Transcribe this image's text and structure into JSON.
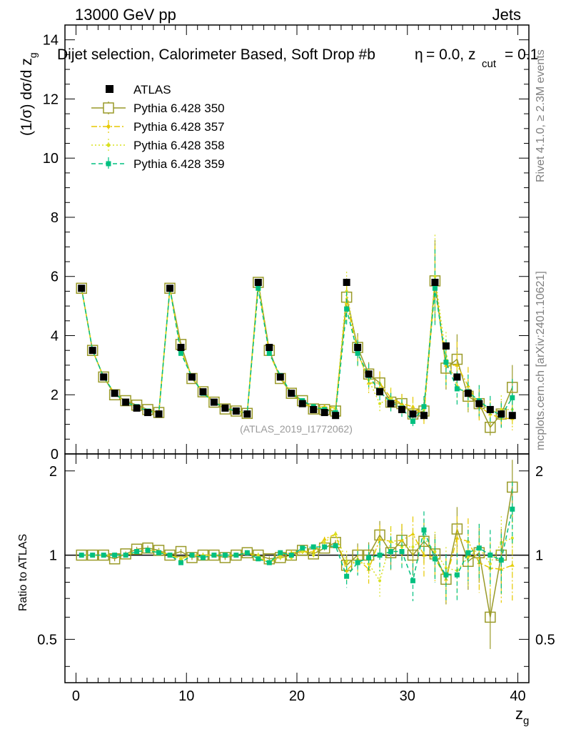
{
  "header": {
    "left": "13000 GeV pp",
    "right": "Jets"
  },
  "side_labels": {
    "rivet": "Rivet 4.1.0, ≥ 2.3M events",
    "mcplots": "mcplots.cern.ch [arXiv:2401.10621]"
  },
  "chart_data": [
    {
      "type": "scatter",
      "title_main": "Dijet selection, Calorimeter Based, Soft Drop #b",
      "title_mid": "= 0.0, z",
      "title_sub": "cut",
      "title_end": "= 0.1",
      "title_eta": "η",
      "ylabel": "(1/σ) dσ/d z",
      "ylabel_sub": "g",
      "watermark": "(ATLAS_2019_I1772062)",
      "xlim": [
        -1,
        41
      ],
      "ylim": [
        0,
        14.5
      ],
      "yticks": [
        "0",
        "2",
        "4",
        "6",
        "8",
        "10",
        "12",
        "14"
      ],
      "legend": [
        {
          "label": "ATLAS",
          "color": "#000000",
          "marker": "filled-square",
          "dash": ""
        },
        {
          "label": "Pythia 6.428 350",
          "color": "#9a9a28",
          "marker": "open-square",
          "dash": ""
        },
        {
          "label": "Pythia 6.428 357",
          "color": "#e6c800",
          "marker": "small-triangle",
          "dash": "8,3,2,3"
        },
        {
          "label": "Pythia 6.428 358",
          "color": "#d8e020",
          "marker": "dot",
          "dash": "2,3"
        },
        {
          "label": "Pythia 6.428 359",
          "color": "#00c080",
          "marker": "filled-square-small",
          "dash": "6,4"
        }
      ],
      "x": [
        0.5,
        1.5,
        2.5,
        3.5,
        4.5,
        5.5,
        6.5,
        7.5,
        8.5,
        9.5,
        10.5,
        11.5,
        12.5,
        13.5,
        14.5,
        15.5,
        16.5,
        17.5,
        18.5,
        19.5,
        20.5,
        21.5,
        22.5,
        23.5,
        24.5,
        25.5,
        26.5,
        27.5,
        28.5,
        29.5,
        30.5,
        31.5,
        32.5,
        33.5,
        34.5,
        35.5,
        36.5,
        37.5,
        38.5,
        39.5
      ],
      "series": [
        {
          "name": "ATLAS",
          "values": [
            5.6,
            3.5,
            2.6,
            2.05,
            1.75,
            1.55,
            1.4,
            1.35,
            5.6,
            3.6,
            2.6,
            2.1,
            1.75,
            1.55,
            1.45,
            1.35,
            5.8,
            3.6,
            2.6,
            2.05,
            1.7,
            1.5,
            1.4,
            1.3,
            5.8,
            3.6,
            2.7,
            2.1,
            1.7,
            1.5,
            1.35,
            1.3,
            5.8,
            3.65,
            2.6,
            2.05,
            1.7,
            1.5,
            1.35,
            1.3
          ]
        },
        {
          "name": "Pythia 6.428 350",
          "values": [
            5.6,
            3.5,
            2.6,
            2.0,
            1.8,
            1.65,
            1.5,
            1.4,
            5.6,
            3.7,
            2.55,
            2.1,
            1.75,
            1.52,
            1.45,
            1.37,
            5.8,
            3.5,
            2.55,
            2.05,
            1.8,
            1.52,
            1.5,
            1.45,
            5.3,
            3.6,
            2.7,
            2.4,
            1.75,
            1.7,
            1.35,
            1.45,
            5.85,
            2.9,
            3.2,
            1.95,
            1.7,
            0.9,
            1.35,
            2.25
          ]
        },
        {
          "name": "Pythia 6.428 357",
          "values": [
            5.6,
            3.5,
            2.6,
            2.05,
            1.75,
            1.6,
            1.45,
            1.4,
            5.6,
            3.5,
            2.6,
            2.1,
            1.75,
            1.55,
            1.45,
            1.38,
            5.7,
            3.4,
            2.6,
            2.1,
            1.75,
            1.55,
            1.6,
            1.55,
            5.1,
            3.5,
            2.4,
            2.4,
            1.9,
            1.7,
            1.6,
            1.3,
            5.7,
            3.0,
            3.0,
            2.3,
            1.6,
            1.35,
            1.2,
            1.2
          ]
        },
        {
          "name": "Pythia 6.428 358",
          "values": [
            5.6,
            3.5,
            2.6,
            2.05,
            1.75,
            1.6,
            1.45,
            1.4,
            5.6,
            3.5,
            2.6,
            2.1,
            1.75,
            1.55,
            1.45,
            1.38,
            5.8,
            3.4,
            2.55,
            2.0,
            1.75,
            1.5,
            1.55,
            1.55,
            5.5,
            3.4,
            2.5,
            1.7,
            1.9,
            1.6,
            1.45,
            1.5,
            6.0,
            3.3,
            2.3,
            2.0,
            1.8,
            1.4,
            1.5,
            1.5
          ]
        },
        {
          "name": "Pythia 6.428 359",
          "values": [
            5.6,
            3.5,
            2.6,
            2.05,
            1.75,
            1.6,
            1.45,
            1.38,
            5.6,
            3.4,
            2.6,
            2.05,
            1.75,
            1.55,
            1.45,
            1.38,
            5.6,
            3.4,
            2.65,
            2.05,
            1.8,
            1.6,
            1.5,
            1.4,
            4.9,
            3.4,
            2.65,
            2.1,
            1.75,
            1.55,
            1.1,
            1.6,
            5.6,
            3.1,
            2.2,
            2.1,
            1.8,
            1.5,
            1.3,
            1.9
          ]
        }
      ]
    },
    {
      "type": "scatter",
      "ylabel": "Ratio to ATLAS",
      "xlabel": "z",
      "xlabel_sub": "g",
      "xlim": [
        -1,
        41
      ],
      "ylim": [
        0.35,
        2.3
      ],
      "yticks": [
        "0.5",
        "1",
        "2"
      ],
      "xticks": [
        "0",
        "10",
        "20",
        "30",
        "40"
      ],
      "x": [
        0.5,
        1.5,
        2.5,
        3.5,
        4.5,
        5.5,
        6.5,
        7.5,
        8.5,
        9.5,
        10.5,
        11.5,
        12.5,
        13.5,
        14.5,
        15.5,
        16.5,
        17.5,
        18.5,
        19.5,
        20.5,
        21.5,
        22.5,
        23.5,
        24.5,
        25.5,
        26.5,
        27.5,
        28.5,
        29.5,
        30.5,
        31.5,
        32.5,
        33.5,
        34.5,
        35.5,
        36.5,
        37.5,
        38.5,
        39.5
      ],
      "series": [
        {
          "name": "Pythia 6.428 350",
          "values": [
            1.0,
            1.0,
            1.0,
            0.97,
            1.01,
            1.05,
            1.06,
            1.04,
            1.0,
            1.03,
            0.98,
            1.0,
            1.0,
            0.98,
            1.0,
            1.02,
            1.0,
            0.97,
            0.98,
            1.0,
            1.04,
            1.01,
            1.06,
            1.11,
            0.92,
            1.0,
            1.0,
            1.18,
            1.02,
            1.13,
            1.0,
            1.12,
            1.01,
            0.82,
            1.24,
            0.95,
            1.02,
            0.6,
            1.0,
            1.75
          ]
        },
        {
          "name": "Pythia 6.428 357",
          "values": [
            1.0,
            1.0,
            1.0,
            1.0,
            1.0,
            1.03,
            1.04,
            1.03,
            1.0,
            0.97,
            1.0,
            1.0,
            1.0,
            1.0,
            1.0,
            1.02,
            0.98,
            0.94,
            1.0,
            1.02,
            1.03,
            1.03,
            1.14,
            1.19,
            0.88,
            0.97,
            0.89,
            1.14,
            1.12,
            1.13,
            1.19,
            1.0,
            0.98,
            0.82,
            1.15,
            1.12,
            0.94,
            0.9,
            0.89,
            0.92
          ]
        },
        {
          "name": "Pythia 6.428 358",
          "values": [
            1.0,
            1.0,
            1.0,
            1.0,
            1.0,
            1.03,
            1.04,
            1.03,
            1.0,
            0.97,
            1.0,
            1.0,
            1.0,
            1.0,
            1.0,
            1.02,
            1.0,
            0.94,
            0.98,
            0.98,
            1.03,
            1.0,
            1.11,
            1.19,
            0.95,
            0.94,
            0.93,
            0.81,
            1.12,
            1.07,
            1.07,
            1.15,
            1.03,
            0.9,
            0.88,
            0.98,
            1.06,
            0.93,
            1.11,
            1.15
          ]
        },
        {
          "name": "Pythia 6.428 359",
          "values": [
            1.0,
            1.0,
            1.0,
            1.0,
            1.0,
            1.03,
            1.04,
            1.02,
            1.0,
            0.94,
            1.0,
            0.98,
            1.0,
            1.0,
            1.0,
            1.02,
            0.97,
            0.94,
            1.02,
            1.0,
            1.06,
            1.07,
            1.07,
            1.08,
            0.84,
            0.94,
            0.98,
            1.0,
            1.03,
            1.03,
            0.81,
            1.23,
            0.97,
            0.85,
            0.85,
            1.02,
            1.06,
            1.0,
            0.96,
            1.46
          ]
        }
      ]
    }
  ]
}
